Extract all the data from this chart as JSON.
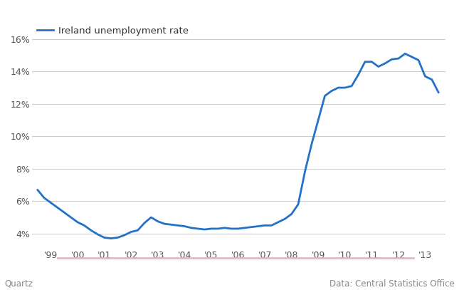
{
  "title": "Ireland unemployment rate",
  "line_color": "#2471c8",
  "background_color": "#ffffff",
  "grid_color": "#cccccc",
  "footer_left": "Quartz",
  "footer_right": "Data: Central Statistics Office",
  "ylim": [
    3.2,
    16.8
  ],
  "yticks": [
    4,
    6,
    8,
    10,
    12,
    14,
    16
  ],
  "xlim": [
    1998.3,
    2013.75
  ],
  "data": [
    [
      1998.5,
      6.7
    ],
    [
      1998.75,
      6.2
    ],
    [
      1999.0,
      5.9
    ],
    [
      1999.25,
      5.6
    ],
    [
      1999.5,
      5.3
    ],
    [
      1999.75,
      5.0
    ],
    [
      2000.0,
      4.7
    ],
    [
      2000.25,
      4.5
    ],
    [
      2000.5,
      4.2
    ],
    [
      2000.75,
      3.95
    ],
    [
      2001.0,
      3.75
    ],
    [
      2001.25,
      3.7
    ],
    [
      2001.5,
      3.75
    ],
    [
      2001.75,
      3.9
    ],
    [
      2002.0,
      4.1
    ],
    [
      2002.25,
      4.2
    ],
    [
      2002.5,
      4.65
    ],
    [
      2002.75,
      5.0
    ],
    [
      2003.0,
      4.75
    ],
    [
      2003.25,
      4.6
    ],
    [
      2003.5,
      4.55
    ],
    [
      2003.75,
      4.5
    ],
    [
      2004.0,
      4.45
    ],
    [
      2004.25,
      4.35
    ],
    [
      2004.5,
      4.3
    ],
    [
      2004.75,
      4.25
    ],
    [
      2005.0,
      4.3
    ],
    [
      2005.25,
      4.3
    ],
    [
      2005.5,
      4.35
    ],
    [
      2005.75,
      4.3
    ],
    [
      2006.0,
      4.3
    ],
    [
      2006.25,
      4.35
    ],
    [
      2006.5,
      4.4
    ],
    [
      2006.75,
      4.45
    ],
    [
      2007.0,
      4.5
    ],
    [
      2007.25,
      4.5
    ],
    [
      2007.5,
      4.7
    ],
    [
      2007.75,
      4.9
    ],
    [
      2008.0,
      5.2
    ],
    [
      2008.25,
      5.8
    ],
    [
      2008.5,
      7.8
    ],
    [
      2008.75,
      9.5
    ],
    [
      2009.0,
      11.0
    ],
    [
      2009.25,
      12.5
    ],
    [
      2009.5,
      12.8
    ],
    [
      2009.75,
      13.0
    ],
    [
      2010.0,
      13.0
    ],
    [
      2010.25,
      13.1
    ],
    [
      2010.5,
      13.8
    ],
    [
      2010.75,
      14.6
    ],
    [
      2011.0,
      14.6
    ],
    [
      2011.25,
      14.3
    ],
    [
      2011.5,
      14.5
    ],
    [
      2011.75,
      14.75
    ],
    [
      2012.0,
      14.8
    ],
    [
      2012.25,
      15.1
    ],
    [
      2012.5,
      14.9
    ],
    [
      2012.75,
      14.7
    ],
    [
      2013.0,
      13.7
    ],
    [
      2013.25,
      13.5
    ],
    [
      2013.5,
      12.7
    ]
  ],
  "xtick_positions": [
    1999.0,
    2000.0,
    2001.0,
    2002.0,
    2003.0,
    2004.0,
    2005.0,
    2006.0,
    2007.0,
    2008.0,
    2009.0,
    2010.0,
    2011.0,
    2012.0,
    2013.0
  ],
  "xtick_labels": [
    "'99",
    "'00",
    "'01",
    "'02",
    "'03",
    "'04",
    "'05",
    "'06",
    "'07",
    "'08",
    "'09",
    "'10",
    "'11",
    "'12",
    "'13"
  ],
  "pink_line_color": "#e8b4c8"
}
